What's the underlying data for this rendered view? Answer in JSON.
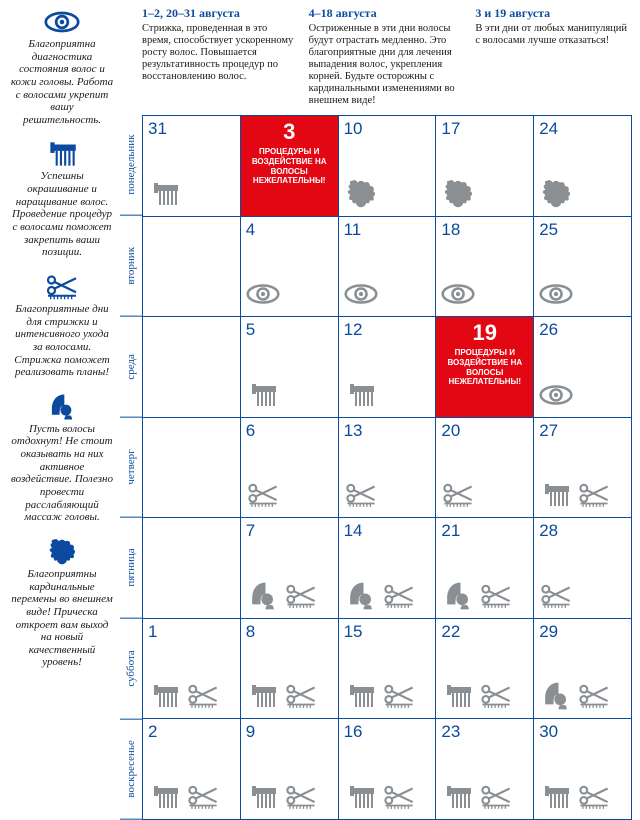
{
  "colors": {
    "blue": "#0b4a9e",
    "red": "#e30613",
    "icon_gray": "#8a8f94",
    "text": "#1a1a1a",
    "bg": "#ffffff"
  },
  "legend": [
    {
      "icon": "eye",
      "text": "Благоприятна диагностика состояния волос и кожи головы. Работа с волосами укрепит вашу решительность."
    },
    {
      "icon": "comb",
      "text": "Успешны окрашивание и наращивание волос. Проведение процедур с волосами поможет закрепить ваши позиции."
    },
    {
      "icon": "scissors",
      "text": "Благоприятные дни для стрижки и интенсивного ухода за волосами. Стрижка поможет реализовать планы!"
    },
    {
      "icon": "headcover",
      "text": "Пусть волосы отдохнут! Не стоит оказывать на них активное воздействие. Полезно провести расслабляющий массаж головы."
    },
    {
      "icon": "curlyhead",
      "text": "Благоприятны кардинальные перемены во внешнем виде! Прическа откроет вам выход на новый качественный уровень!"
    }
  ],
  "headers": [
    {
      "title": "1–2, 20–31 августа",
      "body": "Стрижка, проведенная в это время, способствует ускоренному росту волос. Повышается результативность процедур по восстановлению волос."
    },
    {
      "title": "4–18 августа",
      "body": "Остриженные в эти дни волосы будут отрастать медленно. Это благоприятные дни для лечения выпадения волос, укрепления корней. Будьте осторожны с кардинальными изменениями во внешнем виде!"
    },
    {
      "title": "3 и 19 августа",
      "body": "В эти дни от любых манипуляций с волосами лучше отказаться!"
    }
  ],
  "warn_text": "ПРОЦЕДУРЫ И ВОЗДЕЙСТВИЕ НА ВОЛОСЫ НЕЖЕЛАТЕЛЬНЫ!",
  "day_labels": [
    "понедельник",
    "вторник",
    "среда",
    "четверг",
    "пятница",
    "суббота",
    "воскресенье"
  ],
  "grid": [
    [
      {
        "n": "31",
        "icons": [
          "comb"
        ]
      },
      {
        "n": "3",
        "warn": true
      },
      {
        "n": "10",
        "icons": [
          "curlyhead"
        ]
      },
      {
        "n": "17",
        "icons": [
          "curlyhead"
        ]
      },
      {
        "n": "24",
        "icons": [
          "curlyhead"
        ]
      }
    ],
    [
      {
        "n": "",
        "icons": []
      },
      {
        "n": "4",
        "icons": [
          "eye"
        ]
      },
      {
        "n": "11",
        "icons": [
          "eye"
        ]
      },
      {
        "n": "18",
        "icons": [
          "eye"
        ]
      },
      {
        "n": "25",
        "icons": [
          "eye"
        ]
      }
    ],
    [
      {
        "n": "",
        "icons": []
      },
      {
        "n": "5",
        "icons": [
          "comb"
        ]
      },
      {
        "n": "12",
        "icons": [
          "comb"
        ]
      },
      {
        "n": "19",
        "warn": true
      },
      {
        "n": "26",
        "icons": [
          "eye"
        ]
      }
    ],
    [
      {
        "n": "",
        "icons": []
      },
      {
        "n": "6",
        "icons": [
          "scissors"
        ]
      },
      {
        "n": "13",
        "icons": [
          "scissors"
        ]
      },
      {
        "n": "20",
        "icons": [
          "scissors"
        ]
      },
      {
        "n": "27",
        "icons": [
          "comb",
          "scissors"
        ]
      }
    ],
    [
      {
        "n": "",
        "icons": []
      },
      {
        "n": "7",
        "icons": [
          "headcover",
          "scissors"
        ]
      },
      {
        "n": "14",
        "icons": [
          "headcover",
          "scissors"
        ]
      },
      {
        "n": "21",
        "icons": [
          "headcover",
          "scissors"
        ]
      },
      {
        "n": "28",
        "icons": [
          "scissors"
        ]
      }
    ],
    [
      {
        "n": "1",
        "icons": [
          "comb",
          "scissors"
        ]
      },
      {
        "n": "8",
        "icons": [
          "comb",
          "scissors"
        ]
      },
      {
        "n": "15",
        "icons": [
          "comb",
          "scissors"
        ]
      },
      {
        "n": "22",
        "icons": [
          "comb",
          "scissors"
        ]
      },
      {
        "n": "29",
        "icons": [
          "headcover",
          "scissors"
        ]
      }
    ],
    [
      {
        "n": "2",
        "icons": [
          "comb",
          "scissors"
        ]
      },
      {
        "n": "9",
        "icons": [
          "comb",
          "scissors"
        ]
      },
      {
        "n": "16",
        "icons": [
          "comb",
          "scissors"
        ]
      },
      {
        "n": "23",
        "icons": [
          "comb",
          "scissors"
        ]
      },
      {
        "n": "30",
        "icons": [
          "comb",
          "scissors"
        ]
      }
    ]
  ]
}
